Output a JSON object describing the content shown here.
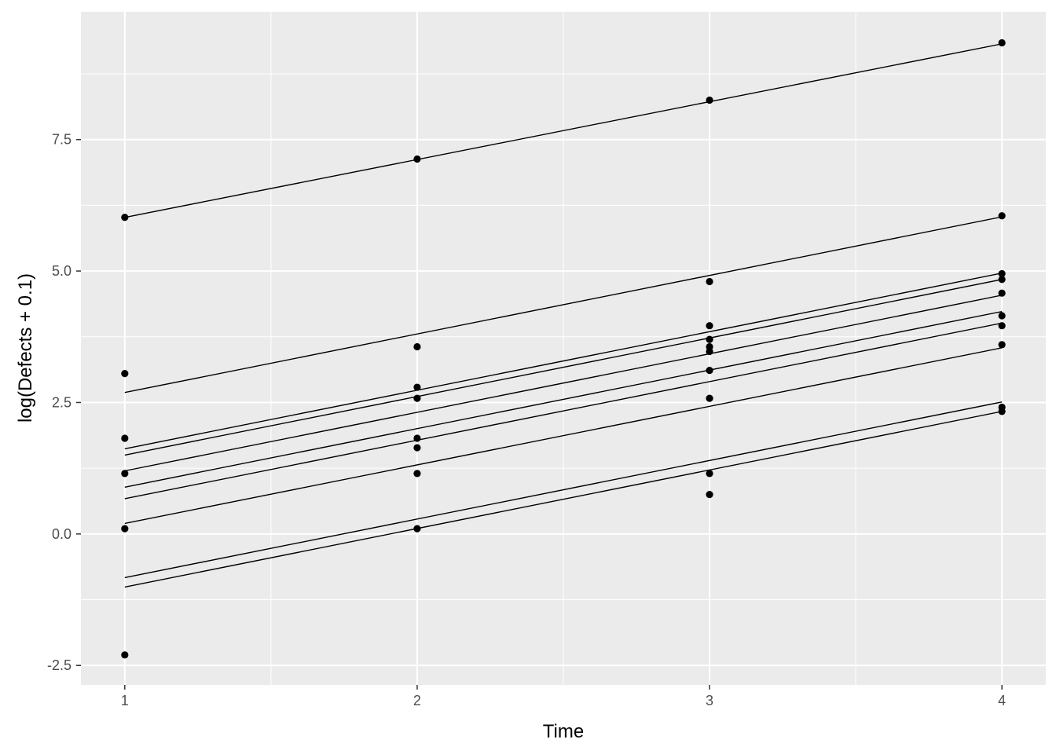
{
  "chart_data": {
    "type": "scatter",
    "xlabel": "Time",
    "ylabel": "log(Defects + 0.1)",
    "xlim": [
      0.85,
      4.15
    ],
    "ylim": [
      -2.87,
      9.93
    ],
    "x_ticks": [
      1,
      2,
      3,
      4
    ],
    "x_tick_labels": [
      "1",
      "2",
      "3",
      "4"
    ],
    "y_ticks": [
      -2.5,
      0.0,
      2.5,
      5.0,
      7.5
    ],
    "y_tick_labels": [
      "-2.5",
      "0.0",
      "2.5",
      "5.0",
      "7.5"
    ],
    "grid": true,
    "colors": {
      "panel": "#ebebeb",
      "grid": "#ffffff",
      "marks": "#000000"
    },
    "points": [
      {
        "x": 1,
        "y": 6.02
      },
      {
        "x": 2,
        "y": 7.13
      },
      {
        "x": 3,
        "y": 8.25
      },
      {
        "x": 4,
        "y": 9.34
      },
      {
        "x": 1,
        "y": 3.05
      },
      {
        "x": 1,
        "y": 1.82
      },
      {
        "x": 1,
        "y": 1.15
      },
      {
        "x": 1,
        "y": 0.1
      },
      {
        "x": 1,
        "y": -2.3
      },
      {
        "x": 2,
        "y": 3.56
      },
      {
        "x": 2,
        "y": 2.79
      },
      {
        "x": 2,
        "y": 2.58
      },
      {
        "x": 2,
        "y": 1.82
      },
      {
        "x": 2,
        "y": 1.64
      },
      {
        "x": 2,
        "y": 1.15
      },
      {
        "x": 2,
        "y": 0.1
      },
      {
        "x": 3,
        "y": 4.8
      },
      {
        "x": 3,
        "y": 3.96
      },
      {
        "x": 3,
        "y": 3.7
      },
      {
        "x": 3,
        "y": 3.56
      },
      {
        "x": 3,
        "y": 3.47
      },
      {
        "x": 3,
        "y": 3.11
      },
      {
        "x": 3,
        "y": 2.58
      },
      {
        "x": 3,
        "y": 1.15
      },
      {
        "x": 3,
        "y": 0.75
      },
      {
        "x": 4,
        "y": 6.05
      },
      {
        "x": 4,
        "y": 4.95
      },
      {
        "x": 4,
        "y": 4.84
      },
      {
        "x": 4,
        "y": 4.58
      },
      {
        "x": 4,
        "y": 4.15
      },
      {
        "x": 4,
        "y": 3.96
      },
      {
        "x": 4,
        "y": 3.6
      },
      {
        "x": 4,
        "y": 2.41
      },
      {
        "x": 4,
        "y": 2.33
      }
    ],
    "fit_lines": [
      {
        "x": [
          1,
          4
        ],
        "y": [
          6.02,
          9.32
        ]
      },
      {
        "x": [
          1,
          4
        ],
        "y": [
          2.69,
          6.03
        ]
      },
      {
        "x": [
          1,
          4
        ],
        "y": [
          1.62,
          4.96
        ]
      },
      {
        "x": [
          1,
          4
        ],
        "y": [
          1.5,
          4.84
        ]
      },
      {
        "x": [
          1,
          4
        ],
        "y": [
          1.2,
          4.54
        ]
      },
      {
        "x": [
          1,
          4
        ],
        "y": [
          0.89,
          4.23
        ]
      },
      {
        "x": [
          1,
          4
        ],
        "y": [
          0.67,
          4.01
        ]
      },
      {
        "x": [
          1,
          4
        ],
        "y": [
          0.2,
          3.54
        ]
      },
      {
        "x": [
          1,
          4
        ],
        "y": [
          -0.83,
          2.51
        ]
      },
      {
        "x": [
          1,
          4
        ],
        "y": [
          -1.01,
          2.33
        ]
      }
    ]
  }
}
